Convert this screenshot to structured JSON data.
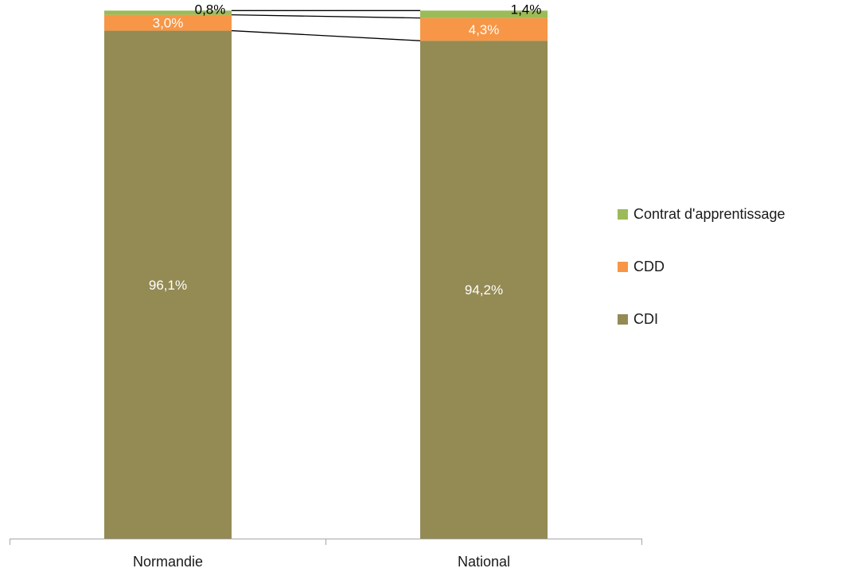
{
  "chart_data": {
    "type": "bar",
    "stacked": true,
    "categories": [
      "Normandie",
      "National"
    ],
    "series": [
      {
        "name": "CDI",
        "values": [
          96.1,
          94.2
        ],
        "labels": [
          "96,1%",
          "94,2%"
        ],
        "color": "#948A54",
        "label_color": "#ffffff"
      },
      {
        "name": "CDD",
        "values": [
          3.0,
          4.3
        ],
        "labels": [
          "3,0%",
          "4,3%"
        ],
        "color": "#F79646",
        "label_color": "#ffffff"
      },
      {
        "name": "Contrat d'apprentissage",
        "values": [
          0.8,
          1.4
        ],
        "labels": [
          "0,8%",
          "1,4%"
        ],
        "color": "#9BBB59",
        "label_color": "#000000"
      }
    ],
    "ylim": [
      0,
      100
    ],
    "series_lines": true,
    "legend_position": "right",
    "legend_order": [
      "Contrat d'apprentissage",
      "CDD",
      "CDI"
    ]
  }
}
